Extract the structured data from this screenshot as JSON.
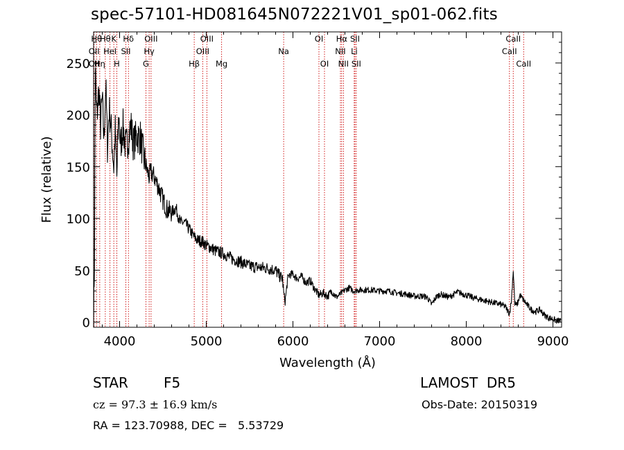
{
  "chart_data": {
    "type": "line",
    "title": "spec-57101-HD081645N072221V01_sp01-062.fits",
    "xlabel": "Wavelength (Å)",
    "ylabel": "Flux (relative)",
    "xlim": [
      3700,
      9100
    ],
    "ylim": [
      -5,
      280
    ],
    "xticks": [
      4000,
      5000,
      6000,
      7000,
      8000,
      9000
    ],
    "yticks": [
      0,
      50,
      100,
      150,
      200,
      250
    ],
    "line_color": "#000000",
    "marker_color": "#cc0000",
    "series": [
      {
        "x": [
          3700,
          3710,
          3720,
          3730,
          3740,
          3760,
          3780,
          3800,
          3820,
          3840,
          3860,
          3880,
          3900,
          3920,
          3933,
          3950,
          3968,
          3990,
          4010,
          4040,
          4070,
          4102,
          4130,
          4160,
          4200,
          4240,
          4280,
          4300,
          4320,
          4340,
          4360,
          4400,
          4450,
          4500,
          4550,
          4600,
          4650,
          4700,
          4750,
          4800,
          4861,
          4900,
          4950,
          5000,
          5050,
          5100,
          5200,
          5300,
          5400,
          5500,
          5600,
          5700,
          5800,
          5850,
          5880,
          5893,
          5910,
          5940,
          5960,
          6000,
          6050,
          6100,
          6150,
          6200,
          6250,
          6300,
          6350,
          6400,
          6450,
          6500,
          6563,
          6600,
          6650,
          6700,
          6750,
          6800,
          6900,
          7000,
          7100,
          7200,
          7300,
          7400,
          7500,
          7550,
          7600,
          7650,
          7700,
          7800,
          7900,
          8000,
          8100,
          8200,
          8300,
          8400,
          8450,
          8498,
          8520,
          8542,
          8560,
          8580,
          8600,
          8620,
          8662,
          8700,
          8750,
          8800,
          8850,
          8900,
          8950,
          9000,
          9050,
          9090
        ],
        "values": [
          5,
          60,
          250,
          210,
          200,
          225,
          190,
          215,
          175,
          230,
          170,
          205,
          190,
          165,
          150,
          185,
          140,
          200,
          170,
          188,
          168,
          178,
          190,
          172,
          180,
          178,
          158,
          152,
          146,
          140,
          145,
          140,
          130,
          118,
          108,
          106,
          110,
          96,
          96,
          90,
          82,
          79,
          78,
          74,
          72,
          69,
          66,
          61,
          58,
          54,
          53,
          52,
          50,
          44,
          42,
          28,
          20,
          42,
          46,
          46,
          42,
          44,
          38,
          40,
          32,
          26,
          28,
          25,
          30,
          24,
          28,
          31,
          33,
          30,
          31,
          31,
          31,
          30,
          30,
          28,
          27,
          25,
          25,
          24,
          17,
          24,
          27,
          24,
          29,
          26,
          23,
          21,
          19,
          17,
          15,
          8,
          20,
          50,
          18,
          16,
          20,
          26,
          21,
          17,
          12,
          10,
          12,
          7,
          4,
          3,
          1,
          2
        ]
      }
    ],
    "line_markers": [
      {
        "x": 3705,
        "label": "OII",
        "row": 1
      },
      {
        "x": 3705,
        "label": "OII",
        "row": 2
      },
      {
        "x": 3734,
        "label": "Hθ",
        "row": 0
      },
      {
        "x": 3771,
        "label": "Hη",
        "row": 2
      },
      {
        "x": 3835,
        "label": "Hθ",
        "row": 0
      },
      {
        "x": 3889,
        "label": "HeI",
        "row": 1
      },
      {
        "x": 3933,
        "label": "K",
        "row": 0
      },
      {
        "x": 3968,
        "label": "H",
        "row": 2
      },
      {
        "x": 4072,
        "label": "SII",
        "row": 1
      },
      {
        "x": 4102,
        "label": "Hδ",
        "row": 0
      },
      {
        "x": 4304,
        "label": "G",
        "row": 2
      },
      {
        "x": 4341,
        "label": "Hγ",
        "row": 1
      },
      {
        "x": 4363,
        "label": "OIII",
        "row": 0
      },
      {
        "x": 4861,
        "label": "Hβ",
        "row": 2
      },
      {
        "x": 4959,
        "label": "OIII",
        "row": 1
      },
      {
        "x": 5007,
        "label": "OIII",
        "row": 0
      },
      {
        "x": 5177,
        "label": "Mg",
        "row": 2
      },
      {
        "x": 5893,
        "label": "Na",
        "row": 1
      },
      {
        "x": 6300,
        "label": "OI",
        "row": 0
      },
      {
        "x": 6364,
        "label": "OI",
        "row": 2
      },
      {
        "x": 6548,
        "label": "NII",
        "row": 1
      },
      {
        "x": 6563,
        "label": "Hα",
        "row": 0
      },
      {
        "x": 6583,
        "label": "NII",
        "row": 2
      },
      {
        "x": 6707,
        "label": "Li",
        "row": 1
      },
      {
        "x": 6716,
        "label": "SII",
        "row": 0
      },
      {
        "x": 6731,
        "label": "SII",
        "row": 2
      },
      {
        "x": 8498,
        "label": "CaII",
        "row": 1
      },
      {
        "x": 8542,
        "label": "CaII",
        "row": 0
      },
      {
        "x": 8662,
        "label": "CaII",
        "row": 2
      }
    ]
  },
  "info": {
    "object_type": "STAR",
    "subclass": "F5",
    "survey": "LAMOST  DR5",
    "cz": "cz = 97.3 ± 16.9 km/s",
    "obs_date": "Obs-Date: 20150319",
    "radec": "RA = 123.70988, DEC =   5.53729"
  }
}
